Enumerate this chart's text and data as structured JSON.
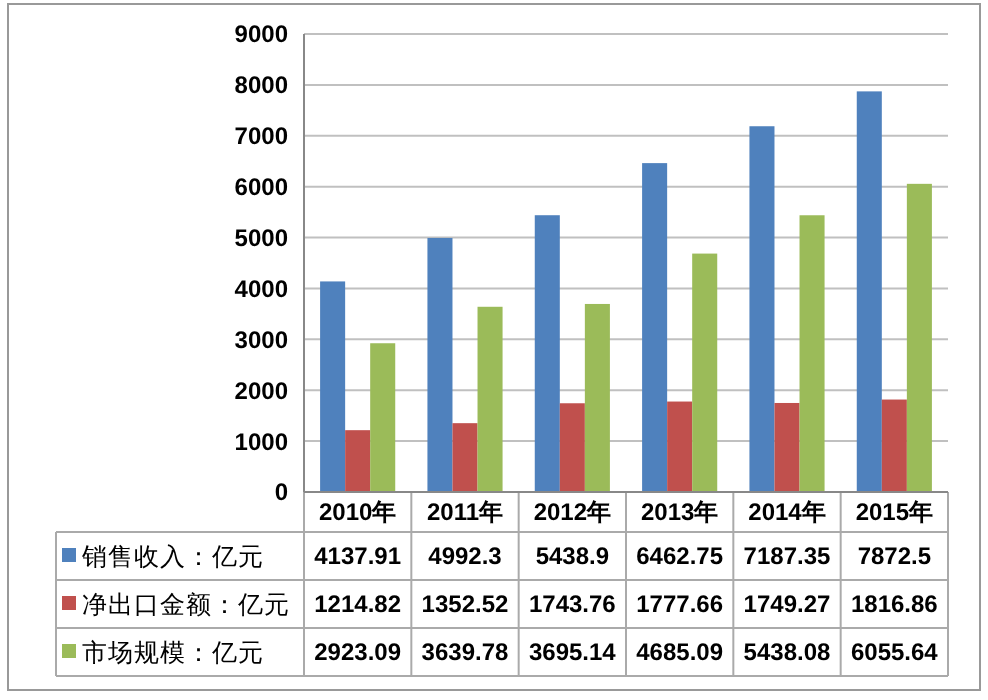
{
  "chart_data": {
    "type": "bar",
    "categories": [
      "2010年",
      "2011年",
      "2012年",
      "2013年",
      "2014年",
      "2015年"
    ],
    "series": [
      {
        "name": "销售收入：亿元",
        "color": "#4f81bd",
        "values": [
          4137.91,
          4992.3,
          5438.9,
          6462.75,
          7187.35,
          7872.5
        ]
      },
      {
        "name": "净出口金额：亿元",
        "color": "#c0504d",
        "values": [
          1214.82,
          1352.52,
          1743.76,
          1777.66,
          1749.27,
          1816.86
        ]
      },
      {
        "name": "市场规模：亿元",
        "color": "#9bbb59",
        "values": [
          2923.09,
          3639.78,
          3695.14,
          4685.09,
          5438.08,
          6055.64
        ]
      }
    ],
    "ylim": [
      0,
      9000
    ],
    "yticks": [
      0,
      1000,
      2000,
      3000,
      4000,
      5000,
      6000,
      7000,
      8000,
      9000
    ],
    "grid": "y",
    "legend": "bottom",
    "data_labels": true
  }
}
